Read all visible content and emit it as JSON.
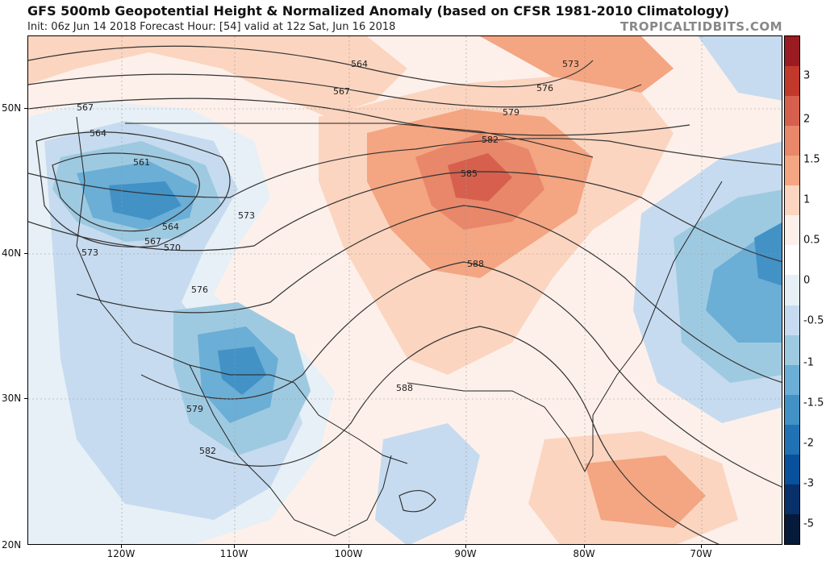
{
  "header": {
    "title": "GFS 500mb Geopotential Height & Normalized Anomaly (based on CFSR 1981-2010 Climatology)",
    "subtitle": "Init: 06z Jun 14 2018   Forecast Hour: [54]   valid at 12z Sat, Jun 16 2018",
    "brand": "TROPICALTIDBITS.COM"
  },
  "axes": {
    "lat_labels": [
      "50N",
      "40N",
      "30N",
      "20N"
    ],
    "lon_labels": [
      "120W",
      "110W",
      "100W",
      "90W",
      "80W",
      "70W"
    ]
  },
  "colorbar": {
    "labels": [
      "3",
      "2",
      "1.5",
      "1",
      "0.5",
      "0",
      "-0.5",
      "-1",
      "-1.5",
      "-2",
      "-3",
      "-5"
    ],
    "colors": [
      "#9a1b22",
      "#c0392b",
      "#d6604d",
      "#e8876a",
      "#f4a582",
      "#fbd5c0",
      "#fdf0ea",
      "#ffffff",
      "#e6f0f6",
      "#c6dbef",
      "#9ecae1",
      "#6baed6",
      "#4292c6",
      "#2171b5",
      "#08519c",
      "#08306b",
      "#061a3a"
    ]
  },
  "contours": {
    "labels": [
      "564",
      "567",
      "573",
      "576",
      "579",
      "582",
      "585",
      "588",
      "561",
      "570"
    ]
  }
}
